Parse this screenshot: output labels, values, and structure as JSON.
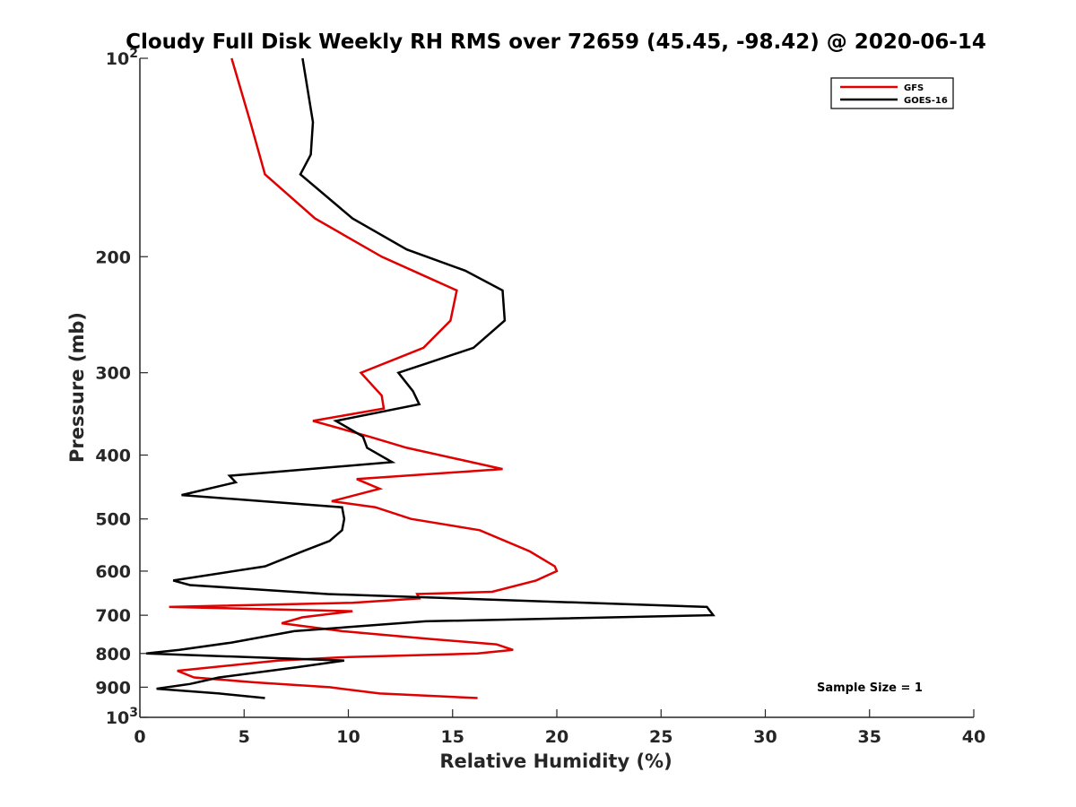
{
  "chart_data": {
    "type": "line",
    "title": "Cloudy Full Disk Weekly RH RMS over 72659 (45.45, -98.42) @ 2020-06-14",
    "xlabel": "Relative Humidity (%)",
    "ylabel": "Pressure (mb)",
    "xlim": [
      0,
      40
    ],
    "ylim": [
      100,
      1000
    ],
    "y_scale": "log",
    "y_reversed": true,
    "x_ticks": [
      "0",
      "5",
      "10",
      "15",
      "20",
      "25",
      "30",
      "35",
      "40"
    ],
    "y_ticks": [
      {
        "value": 100,
        "label": "10",
        "sup": "2"
      },
      {
        "value": 200,
        "label": "200"
      },
      {
        "value": 300,
        "label": "300"
      },
      {
        "value": 400,
        "label": "400"
      },
      {
        "value": 500,
        "label": "500"
      },
      {
        "value": 600,
        "label": "600"
      },
      {
        "value": 700,
        "label": "700"
      },
      {
        "value": 800,
        "label": "800"
      },
      {
        "value": 900,
        "label": "900"
      },
      {
        "value": 1000,
        "label": "10",
        "sup": "3"
      }
    ],
    "legend_position": "top-right",
    "annotation": "Sample Size = 1",
    "series": [
      {
        "name": "GFS",
        "color": "#e00000",
        "points": [
          [
            4.4,
            100
          ],
          [
            5.3,
            125
          ],
          [
            6.0,
            150
          ],
          [
            8.4,
            175
          ],
          [
            11.6,
            200
          ],
          [
            13.8,
            215
          ],
          [
            15.2,
            225
          ],
          [
            14.9,
            250
          ],
          [
            13.6,
            275
          ],
          [
            10.6,
            300
          ],
          [
            11.6,
            325
          ],
          [
            11.7,
            340
          ],
          [
            8.3,
            355
          ],
          [
            11.0,
            375
          ],
          [
            12.8,
            390
          ],
          [
            17.4,
            420
          ],
          [
            10.4,
            435
          ],
          [
            11.5,
            450
          ],
          [
            9.2,
            470
          ],
          [
            11.3,
            480
          ],
          [
            13.0,
            500
          ],
          [
            16.3,
            520
          ],
          [
            18.7,
            560
          ],
          [
            19.9,
            590
          ],
          [
            20.0,
            600
          ],
          [
            19.0,
            620
          ],
          [
            16.9,
            645
          ],
          [
            13.3,
            650
          ],
          [
            13.4,
            660
          ],
          [
            10.2,
            670
          ],
          [
            1.4,
            680
          ],
          [
            10.2,
            690
          ],
          [
            7.8,
            705
          ],
          [
            6.8,
            720
          ],
          [
            9.7,
            740
          ],
          [
            13.8,
            760
          ],
          [
            17.1,
            775
          ],
          [
            17.9,
            790
          ],
          [
            16.2,
            800
          ],
          [
            10.0,
            810
          ],
          [
            6.6,
            820
          ],
          [
            1.8,
            850
          ],
          [
            2.6,
            870
          ],
          [
            5.5,
            885
          ],
          [
            9.1,
            900
          ],
          [
            11.5,
            920
          ],
          [
            16.2,
            935
          ]
        ]
      },
      {
        "name": "GOES-16",
        "color": "#000000",
        "points": [
          [
            7.8,
            100
          ],
          [
            8.3,
            125
          ],
          [
            8.2,
            140
          ],
          [
            7.7,
            150
          ],
          [
            10.2,
            175
          ],
          [
            12.8,
            195
          ],
          [
            15.6,
            210
          ],
          [
            17.4,
            225
          ],
          [
            17.5,
            250
          ],
          [
            16.0,
            275
          ],
          [
            13.8,
            290
          ],
          [
            12.4,
            300
          ],
          [
            13.1,
            320
          ],
          [
            13.4,
            335
          ],
          [
            9.4,
            355
          ],
          [
            10.7,
            375
          ],
          [
            10.9,
            390
          ],
          [
            12.1,
            410
          ],
          [
            4.3,
            430
          ],
          [
            4.6,
            440
          ],
          [
            2.0,
            460
          ],
          [
            9.7,
            480
          ],
          [
            9.8,
            500
          ],
          [
            9.7,
            520
          ],
          [
            9.1,
            540
          ],
          [
            7.8,
            560
          ],
          [
            6.0,
            590
          ],
          [
            1.6,
            620
          ],
          [
            2.4,
            630
          ],
          [
            9.0,
            650
          ],
          [
            27.2,
            680
          ],
          [
            27.5,
            700
          ],
          [
            13.7,
            715
          ],
          [
            7.4,
            740
          ],
          [
            4.4,
            770
          ],
          [
            1.9,
            790
          ],
          [
            0.3,
            800
          ],
          [
            9.8,
            820
          ],
          [
            7.5,
            840
          ],
          [
            3.8,
            870
          ],
          [
            2.4,
            890
          ],
          [
            0.8,
            905
          ],
          [
            3.8,
            920
          ],
          [
            6.0,
            935
          ]
        ]
      }
    ]
  }
}
